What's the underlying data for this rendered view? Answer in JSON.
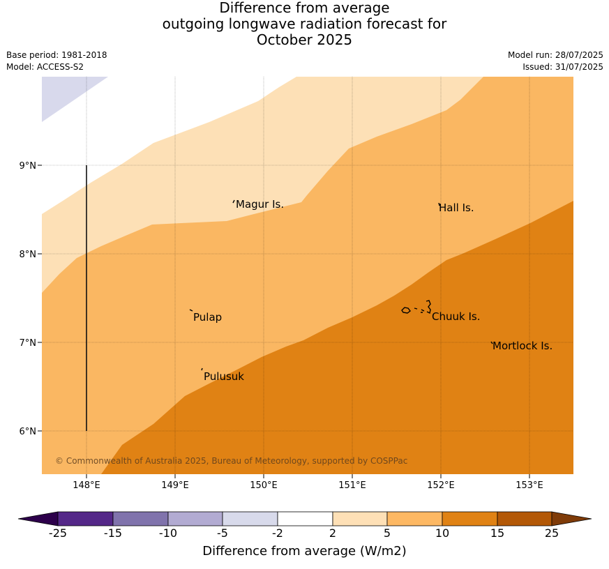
{
  "title": {
    "line1": "Difference from average",
    "line2": "outgoing longwave radiation forecast for",
    "line3": "October 2025"
  },
  "meta": {
    "base_period": "Base period: 1981-2018",
    "model": "Model: ACCESS-S2",
    "model_run": "Model run: 28/07/2025",
    "issued": "Issued: 31/07/2025"
  },
  "map": {
    "lat_labels": [
      "9°N",
      "8°N",
      "7°N",
      "6°N"
    ],
    "lon_labels": [
      "148°E",
      "149°E",
      "150°E",
      "151°E",
      "152°E",
      "153°E"
    ],
    "places": [
      "Magur Is.",
      "Hall Is.",
      "Pulap",
      "Chuuk Is.",
      "Mortlock Is.",
      "Pulusuk"
    ],
    "copyright": "© Commonwealth of Australia 2025, Bureau of Meteorology, supported by COSPPac",
    "fill_colors": {
      "lt_neg5": "#d8d9ec",
      "2_to_5": "#fde0b6",
      "5_to_10": "#fab762",
      "10_to_15": "#e08214"
    }
  },
  "colorbar": {
    "labels": [
      "-25",
      "-15",
      "-10",
      "-5",
      "-2",
      "2",
      "5",
      "10",
      "15",
      "25"
    ],
    "colors": [
      "#2d004b",
      "#542788",
      "#8073ac",
      "#b2abd2",
      "#d8daeb",
      "#ffffff",
      "#fee0b6",
      "#fdb863",
      "#e08214",
      "#b35806",
      "#7f3b08"
    ],
    "title": "Difference from average (W/m2)"
  }
}
